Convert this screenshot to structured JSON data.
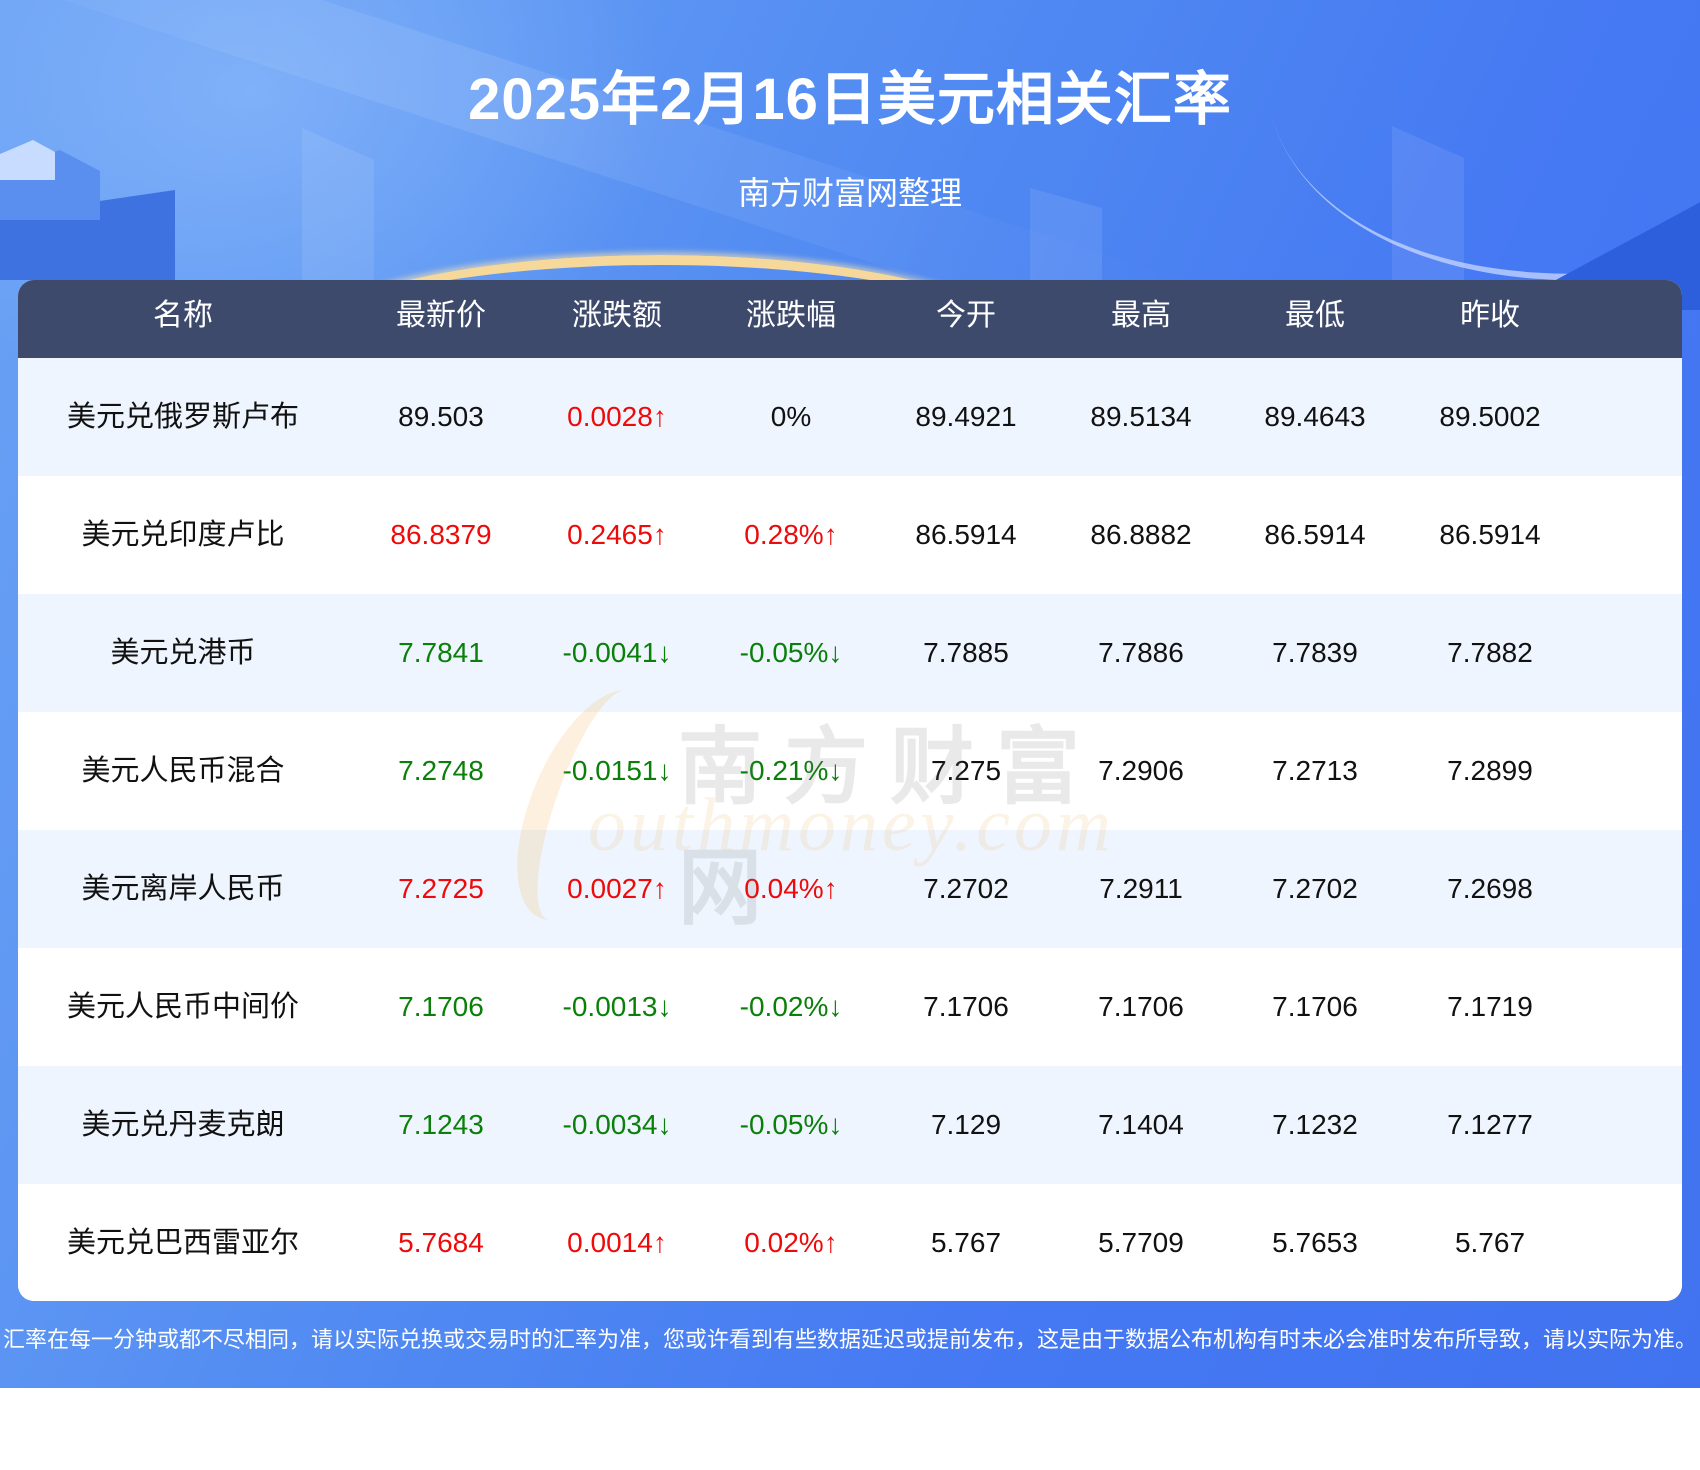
{
  "header": {
    "title": "2025年2月16日美元相关汇率",
    "subtitle": "南方财富网整理"
  },
  "colors": {
    "header_bg": "#4a7ff2",
    "table_header_bg": "#3d4a6b",
    "row_alt_bg": "#eef5fe",
    "up": "#ee0a0a",
    "down": "#0a7f0a",
    "neutral": "#111111"
  },
  "table": {
    "columns": [
      "名称",
      "最新价",
      "涨跌额",
      "涨跌幅",
      "今开",
      "最高",
      "最低",
      "昨收"
    ],
    "rows": [
      {
        "name": "美元兑俄罗斯卢布",
        "latest": "89.503",
        "latest_dir": "neutral",
        "change": "0.0028↑",
        "change_dir": "up",
        "pct": "0%",
        "pct_dir": "neutral",
        "open": "89.4921",
        "high": "89.5134",
        "low": "89.4643",
        "prev_close": "89.5002"
      },
      {
        "name": "美元兑印度卢比",
        "latest": "86.8379",
        "latest_dir": "up",
        "change": "0.2465↑",
        "change_dir": "up",
        "pct": "0.28%↑",
        "pct_dir": "up",
        "open": "86.5914",
        "high": "86.8882",
        "low": "86.5914",
        "prev_close": "86.5914"
      },
      {
        "name": "美元兑港币",
        "latest": "7.7841",
        "latest_dir": "down",
        "change": "-0.0041↓",
        "change_dir": "down",
        "pct": "-0.05%↓",
        "pct_dir": "down",
        "open": "7.7885",
        "high": "7.7886",
        "low": "7.7839",
        "prev_close": "7.7882"
      },
      {
        "name": "美元人民币混合",
        "latest": "7.2748",
        "latest_dir": "down",
        "change": "-0.0151↓",
        "change_dir": "down",
        "pct": "-0.21%↓",
        "pct_dir": "down",
        "open": "7.275",
        "high": "7.2906",
        "low": "7.2713",
        "prev_close": "7.2899"
      },
      {
        "name": "美元离岸人民币",
        "latest": "7.2725",
        "latest_dir": "up",
        "change": "0.0027↑",
        "change_dir": "up",
        "pct": "0.04%↑",
        "pct_dir": "up",
        "open": "7.2702",
        "high": "7.2911",
        "low": "7.2702",
        "prev_close": "7.2698"
      },
      {
        "name": "美元人民币中间价",
        "latest": "7.1706",
        "latest_dir": "down",
        "change": "-0.0013↓",
        "change_dir": "down",
        "pct": "-0.02%↓",
        "pct_dir": "down",
        "open": "7.1706",
        "high": "7.1706",
        "low": "7.1706",
        "prev_close": "7.1719"
      },
      {
        "name": "美元兑丹麦克朗",
        "latest": "7.1243",
        "latest_dir": "down",
        "change": "-0.0034↓",
        "change_dir": "down",
        "pct": "-0.05%↓",
        "pct_dir": "down",
        "open": "7.129",
        "high": "7.1404",
        "low": "7.1232",
        "prev_close": "7.1277"
      },
      {
        "name": "美元兑巴西雷亚尔",
        "latest": "5.7684",
        "latest_dir": "up",
        "change": "0.0014↑",
        "change_dir": "up",
        "pct": "0.02%↑",
        "pct_dir": "up",
        "open": "5.767",
        "high": "5.7709",
        "low": "5.7653",
        "prev_close": "5.767"
      }
    ]
  },
  "watermark": {
    "cn": "南方财富网",
    "en": "outhmoney.com"
  },
  "footer": {
    "note": "汇率在每一分钟或都不尽相同，请以实际兑换或交易时的汇率为准，您或许看到有些数据延迟或提前发布，这是由于数据公布机构有时未必会准时发布所导致，请以实际为准。"
  }
}
